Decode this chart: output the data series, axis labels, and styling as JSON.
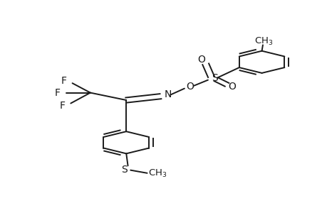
{
  "bg_color": "#ffffff",
  "line_color": "#1a1a1a",
  "line_width": 1.4,
  "font_size": 10,
  "figsize": [
    4.6,
    3.0
  ],
  "dpi": 100,
  "xlim": [
    0,
    1
  ],
  "ylim": [
    0,
    1
  ]
}
